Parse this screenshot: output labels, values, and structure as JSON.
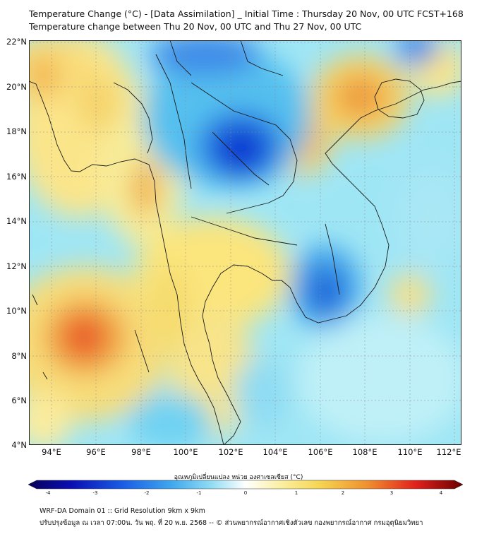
{
  "header": {
    "title": "Temperature Change (°C) - [Data Assimilation] _ Initial Time : Thursday 20 Nov, 00 UTC FCST+168",
    "subtitle": "Temperature change between Thu 20 Nov, 00 UTC and Thu 27 Nov, 00 UTC"
  },
  "map": {
    "lat_labels": [
      "22°N",
      "20°N",
      "18°N",
      "16°N",
      "14°N",
      "12°N",
      "10°N",
      "8°N",
      "6°N",
      "4°N"
    ],
    "lon_labels": [
      "94°E",
      "96°E",
      "98°E",
      "100°E",
      "102°E",
      "104°E",
      "106°E",
      "108°E",
      "110°E",
      "112°E"
    ],
    "lat_range": [
      4,
      22
    ],
    "lon_range": [
      93,
      112.3
    ]
  },
  "colorbar": {
    "title": "อุณหภูมิเปลี่ยนแปลง หน่วย องศาเซลเซียส (°C)",
    "ticks": [
      "-4",
      "-3",
      "-2",
      "-1",
      "0",
      "1",
      "2",
      "3",
      "4"
    ],
    "range": [
      -4,
      4
    ]
  },
  "footer": {
    "line1": "WRF-DA Domain 01 :: Grid Resolution 9km x 9km",
    "line2": "ปรับปรุงข้อมูล ณ เวลา 07:00น. วัน พฤ. ที่ 20 พ.ย. 2568 -- © ส่วนพยากรณ์อากาศเชิงตัวเลข กองพยากรณ์อากาศ กรมอุตุนิยมวิทยา"
  }
}
